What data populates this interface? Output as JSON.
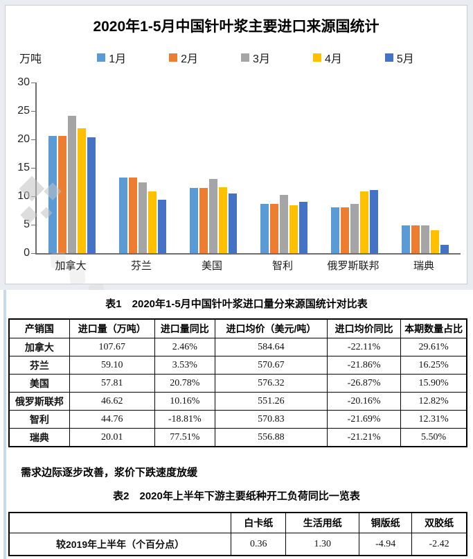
{
  "chart_data": {
    "type": "bar",
    "title": "2020年1-5月中国针叶浆主要进口来源国统计",
    "unit_label": "万吨",
    "categories": [
      "加拿大",
      "芬兰",
      "美国",
      "智利",
      "俄罗斯联邦",
      "瑞典"
    ],
    "series": [
      {
        "name": "1月",
        "color": "#5B9BD5",
        "values": [
          20.6,
          13.3,
          11.5,
          8.7,
          8.1,
          4.9
        ]
      },
      {
        "name": "2月",
        "color": "#ED7D31",
        "values": [
          20.6,
          13.3,
          11.5,
          8.7,
          8.1,
          4.9
        ]
      },
      {
        "name": "3月",
        "color": "#A5A5A5",
        "values": [
          24.2,
          12.5,
          13.0,
          10.3,
          8.6,
          4.9
        ]
      },
      {
        "name": "4月",
        "color": "#FFC000",
        "values": [
          22.0,
          10.9,
          11.6,
          8.4,
          10.8,
          4.0
        ]
      },
      {
        "name": "5月",
        "color": "#4472C4",
        "values": [
          20.4,
          9.4,
          10.5,
          9.0,
          11.1,
          1.5
        ]
      }
    ],
    "ylim": [
      0,
      30
    ],
    "y_ticks": [
      0,
      5,
      10,
      15,
      20,
      25,
      30
    ],
    "grid": false,
    "legend_position": "top"
  },
  "table1": {
    "title": "表1　2020年1-5月中国针叶浆进口量分来源国统计对比表",
    "headers": [
      "产销国",
      "进口量（万吨）",
      "进口量同比",
      "进口均价（美元/吨）",
      "进口均价同比",
      "本期数量占比"
    ],
    "col_widths": [
      "13.2%",
      "18.6%",
      "13.2%",
      "24.5%",
      "16.1%",
      "14.4%"
    ],
    "rows": [
      [
        "加拿大",
        "107.67",
        "2.46%",
        "584.64",
        "-22.11%",
        "29.61%"
      ],
      [
        "芬兰",
        "59.10",
        "3.53%",
        "570.67",
        "-21.86%",
        "16.25%"
      ],
      [
        "美国",
        "57.81",
        "20.78%",
        "576.32",
        "-26.87%",
        "15.90%"
      ],
      [
        "俄罗斯联邦",
        "46.62",
        "10.16%",
        "551.26",
        "-20.16%",
        "12.82%"
      ],
      [
        "智利",
        "44.76",
        "-18.81%",
        "570.83",
        "-21.69%",
        "12.31%"
      ],
      [
        "瑞典",
        "20.01",
        "77.51%",
        "556.88",
        "-21.21%",
        "5.50%"
      ]
    ]
  },
  "note": "需求边际逐步改善，浆价下跌速度放缓",
  "table2": {
    "title": "表2　2020年上半年下游主要纸种开工负荷同比一览表",
    "headers": [
      "",
      "白卡纸",
      "生活用纸",
      "铜版纸",
      "双胶纸"
    ],
    "col_widths": [
      "48.5%",
      "12%",
      "16%",
      "11.5%",
      "12%"
    ],
    "rows": [
      [
        "较2019年上半年（个百分点）",
        "0.36",
        "1.30",
        "-4.94",
        "-2.42"
      ]
    ]
  }
}
